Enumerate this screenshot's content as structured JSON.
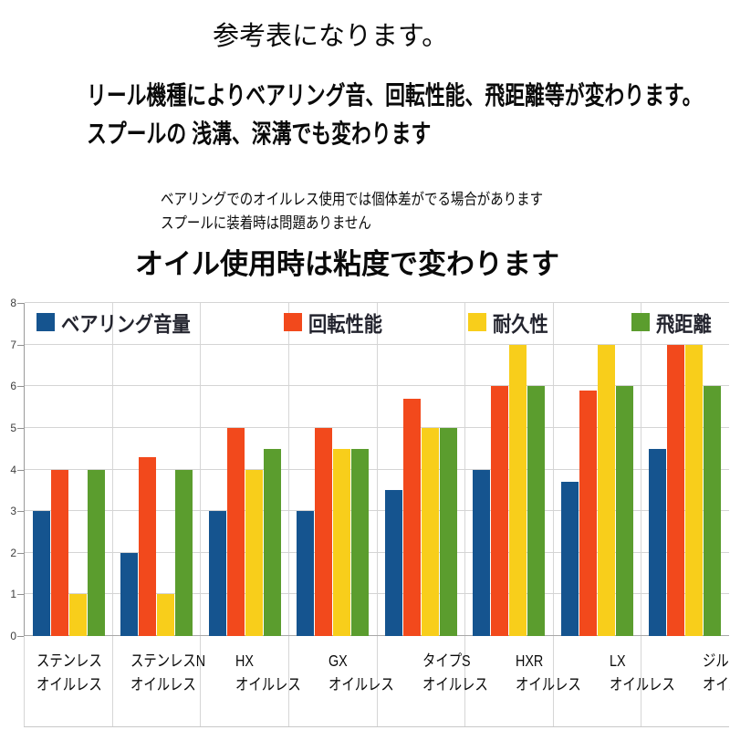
{
  "header": {
    "title": "参考表になります。",
    "line1": "リール機種によりベアリング音、回転性能、飛距離等が変わります。",
    "line2": "スプールの 浅溝、深溝でも変わります",
    "note1": "ベアリングでのオイルレス使用では個体差がでる場合があります",
    "note2": "スプールに装着時は問題ありません",
    "subtitle": "オイル使用時は粘度で変わります"
  },
  "chart_data": {
    "type": "bar",
    "title": "",
    "xlabel": "",
    "ylabel": "",
    "ylim": [
      0,
      8
    ],
    "yticks": [
      0,
      1,
      2,
      3,
      4,
      5,
      6,
      7,
      8
    ],
    "grid": true,
    "legend_position": "top",
    "categories": [
      {
        "line1": "ステンレス",
        "line2": "オイルレス"
      },
      {
        "line1": "ステンレスN",
        "line2": "オイルレス"
      },
      {
        "line1": "HX",
        "line2": "オイルレス"
      },
      {
        "line1": "GX",
        "line2": "オイルレス"
      },
      {
        "line1": "タイプS",
        "line2": "オイルレス"
      },
      {
        "line1": "HXR",
        "line2": "オイルレス"
      },
      {
        "line1": "LX",
        "line2": "オイルレス"
      },
      {
        "line1": "ジルコニア",
        "line2": "オイルレス"
      }
    ],
    "series": [
      {
        "name": "ベアリング音量",
        "color": "#15548f",
        "values": [
          3,
          2,
          3,
          3,
          3.5,
          4,
          3.7,
          4.5
        ]
      },
      {
        "name": "回転性能",
        "color": "#f2491c",
        "values": [
          4,
          4.3,
          5,
          5,
          5.7,
          6,
          5.9,
          7
        ]
      },
      {
        "name": "耐久性",
        "color": "#f8ce1b",
        "values": [
          1,
          1,
          4,
          4.5,
          5,
          7,
          7,
          7
        ]
      },
      {
        "name": "飛距離",
        "color": "#5b9d2e",
        "values": [
          4,
          4,
          4.5,
          4.5,
          5,
          6,
          6,
          6
        ]
      }
    ]
  }
}
